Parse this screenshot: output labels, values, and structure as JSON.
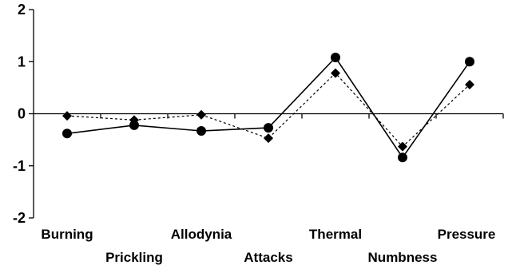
{
  "chart_data": {
    "type": "line",
    "title": "",
    "xlabel": "",
    "ylabel": "",
    "ylim": [
      -2,
      2
    ],
    "yticks": [
      -2,
      -1,
      0,
      1,
      2
    ],
    "ytick_labels": [
      "-2",
      "-1",
      "0",
      "1",
      "2"
    ],
    "grid": false,
    "legend": "none",
    "categories": [
      "Burning",
      "Prickling",
      "Allodynia",
      "Attacks",
      "Thermal",
      "Numbness",
      "Pressure"
    ],
    "series": [
      {
        "marker": "circle",
        "line_style": "solid",
        "color": "#000000",
        "values": [
          -0.38,
          -0.22,
          -0.33,
          -0.27,
          1.08,
          -0.84,
          1.0
        ]
      },
      {
        "marker": "diamond",
        "line_style": "dashed",
        "color": "#000000",
        "values": [
          -0.04,
          -0.12,
          -0.02,
          -0.47,
          0.78,
          -0.63,
          0.56
        ]
      }
    ]
  }
}
